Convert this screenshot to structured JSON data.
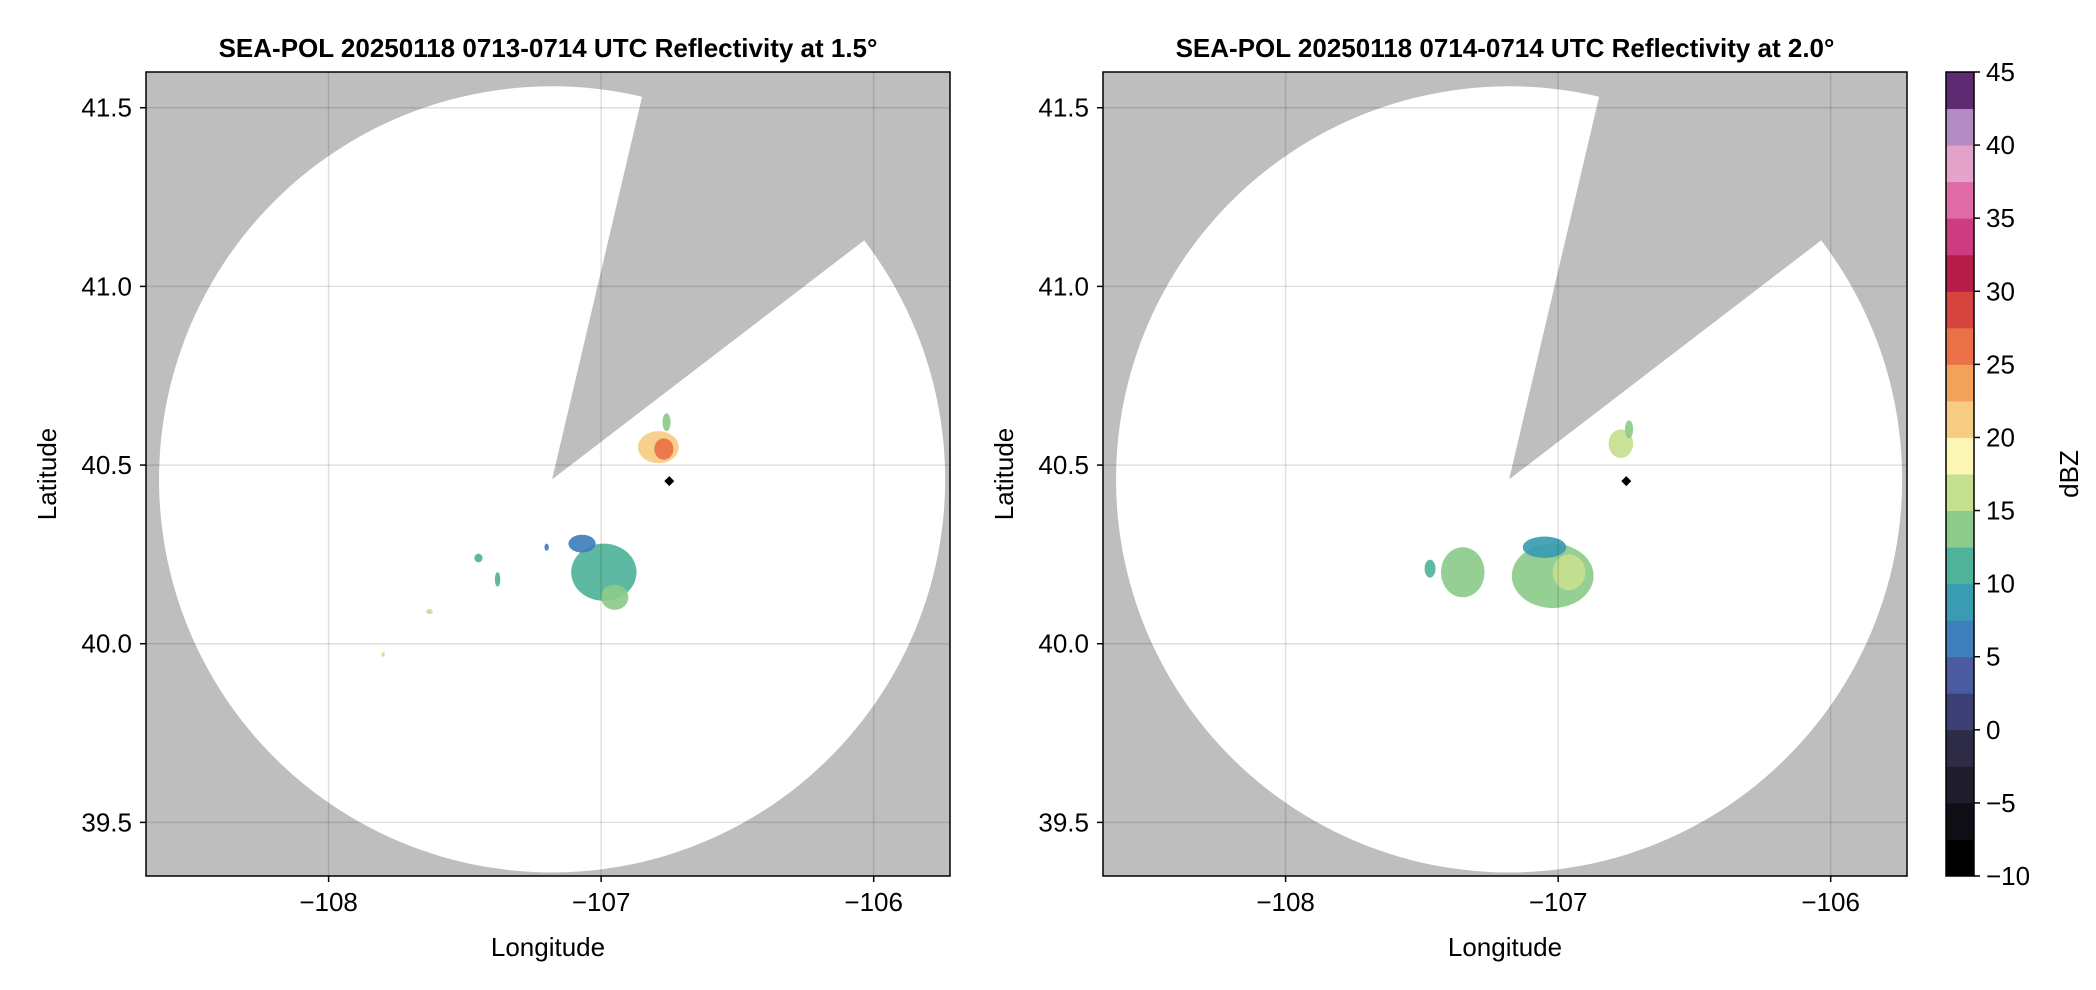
{
  "colorbar": {
    "label": "dBZ",
    "min": -10,
    "max": 45,
    "ticks": [
      -10,
      -5,
      0,
      5,
      10,
      15,
      20,
      25,
      30,
      35,
      40,
      45
    ],
    "tick_labels": [
      "−10",
      "−5",
      "0",
      "5",
      "10",
      "15",
      "20",
      "25",
      "30",
      "35",
      "40",
      "45"
    ],
    "bins": [
      {
        "from": -10,
        "to": -7.5,
        "color": "#000000"
      },
      {
        "from": -7.5,
        "to": -5,
        "color": "#0f0e14"
      },
      {
        "from": -5,
        "to": -2.5,
        "color": "#1f1d2b"
      },
      {
        "from": -2.5,
        "to": 0,
        "color": "#2e2b47"
      },
      {
        "from": 0,
        "to": 2.5,
        "color": "#3b3f73"
      },
      {
        "from": 2.5,
        "to": 5,
        "color": "#4a5ba1"
      },
      {
        "from": 5,
        "to": 7.5,
        "color": "#3f7fbc"
      },
      {
        "from": 7.5,
        "to": 10,
        "color": "#3a9cb1"
      },
      {
        "from": 10,
        "to": 12.5,
        "color": "#4fb39a"
      },
      {
        "from": 12.5,
        "to": 15,
        "color": "#8ccb8a"
      },
      {
        "from": 15,
        "to": 17.5,
        "color": "#c5e08e"
      },
      {
        "from": 17.5,
        "to": 20,
        "color": "#fbf6b4"
      },
      {
        "from": 20,
        "to": 22.5,
        "color": "#f6cc83"
      },
      {
        "from": 22.5,
        "to": 25,
        "color": "#f3a25a"
      },
      {
        "from": 25,
        "to": 27.5,
        "color": "#ea7147"
      },
      {
        "from": 27.5,
        "to": 30,
        "color": "#d6443f"
      },
      {
        "from": 30,
        "to": 32.5,
        "color": "#b71d4a"
      },
      {
        "from": 32.5,
        "to": 35,
        "color": "#cc3c7e"
      },
      {
        "from": 35,
        "to": 37.5,
        "color": "#de6ba5"
      },
      {
        "from": 37.5,
        "to": 40,
        "color": "#e4a4ca"
      },
      {
        "from": 40,
        "to": 42.5,
        "color": "#b38cc4"
      },
      {
        "from": 42.5,
        "to": 45,
        "color": "#5e2a72"
      }
    ]
  },
  "chart_data": [
    {
      "type": "heatmap",
      "title": "SEA-POL 20250118 0713-0714 UTC Reflectivity at 1.5°",
      "xlabel": "Longitude",
      "ylabel": "Latitude",
      "xlim": [
        -108.67,
        -105.72
      ],
      "ylim": [
        39.35,
        41.6
      ],
      "xticks": [
        -108,
        -107,
        -106
      ],
      "xtick_labels": [
        "−108",
        "−107",
        "−106"
      ],
      "yticks": [
        39.5,
        40.0,
        40.5,
        41.0,
        41.5
      ],
      "ytick_labels": [
        "39.5",
        "40.0",
        "40.5",
        "41.0",
        "41.5"
      ],
      "grid": true,
      "background_color": "#bebebe",
      "coverage": {
        "center": [
          -107.18,
          40.46
        ],
        "radius_deg_lat": 1.1,
        "wedge_edge_1": [
          -106.85,
          41.53
        ],
        "wedge_edge_2": [
          -106.05,
          41.12
        ]
      },
      "marker": {
        "lon": -106.75,
        "lat": 40.455,
        "shape": "diamond",
        "color": "#000000"
      },
      "echoes": [
        {
          "lon": -106.99,
          "lat": 40.2,
          "rx": 0.12,
          "ry": 0.08,
          "dbz": 12
        },
        {
          "lon": -107.07,
          "lat": 40.28,
          "rx": 0.05,
          "ry": 0.025,
          "dbz": 6
        },
        {
          "lon": -106.95,
          "lat": 40.13,
          "rx": 0.05,
          "ry": 0.035,
          "dbz": 14
        },
        {
          "lon": -106.79,
          "lat": 40.55,
          "rx": 0.075,
          "ry": 0.045,
          "dbz": 20
        },
        {
          "lon": -106.77,
          "lat": 40.545,
          "rx": 0.035,
          "ry": 0.03,
          "dbz": 25
        },
        {
          "lon": -106.76,
          "lat": 40.62,
          "rx": 0.015,
          "ry": 0.025,
          "dbz": 14
        },
        {
          "lon": -107.45,
          "lat": 40.24,
          "rx": 0.015,
          "ry": 0.012,
          "dbz": 12
        },
        {
          "lon": -107.38,
          "lat": 40.18,
          "rx": 0.01,
          "ry": 0.02,
          "dbz": 11
        },
        {
          "lon": -107.2,
          "lat": 40.27,
          "rx": 0.008,
          "ry": 0.01,
          "dbz": 6
        },
        {
          "lon": -107.63,
          "lat": 40.09,
          "rx": 0.012,
          "ry": 0.007,
          "dbz": 16
        },
        {
          "lon": -107.8,
          "lat": 39.97,
          "rx": 0.006,
          "ry": 0.006,
          "dbz": 22
        }
      ]
    },
    {
      "type": "heatmap",
      "title": "SEA-POL 20250118 0714-0714 UTC Reflectivity at 2.0°",
      "xlabel": "Longitude",
      "ylabel": "Latitude",
      "xlim": [
        -108.67,
        -105.72
      ],
      "ylim": [
        39.35,
        41.6
      ],
      "xticks": [
        -108,
        -107,
        -106
      ],
      "xtick_labels": [
        "−108",
        "−107",
        "−106"
      ],
      "yticks": [
        39.5,
        40.0,
        40.5,
        41.0,
        41.5
      ],
      "ytick_labels": [
        "39.5",
        "40.0",
        "40.5",
        "41.0",
        "41.5"
      ],
      "grid": true,
      "background_color": "#bebebe",
      "coverage": {
        "center": [
          -107.18,
          40.46
        ],
        "radius_deg_lat": 1.1,
        "wedge_edge_1": [
          -106.85,
          41.53
        ],
        "wedge_edge_2": [
          -106.05,
          41.12
        ]
      },
      "marker": {
        "lon": -106.75,
        "lat": 40.455,
        "shape": "diamond",
        "color": "#000000"
      },
      "echoes": [
        {
          "lon": -107.35,
          "lat": 40.2,
          "rx": 0.08,
          "ry": 0.07,
          "dbz": 14
        },
        {
          "lon": -107.02,
          "lat": 40.19,
          "rx": 0.15,
          "ry": 0.09,
          "dbz": 13
        },
        {
          "lon": -106.96,
          "lat": 40.2,
          "rx": 0.06,
          "ry": 0.05,
          "dbz": 16
        },
        {
          "lon": -107.05,
          "lat": 40.27,
          "rx": 0.08,
          "ry": 0.03,
          "dbz": 9
        },
        {
          "lon": -106.77,
          "lat": 40.56,
          "rx": 0.045,
          "ry": 0.04,
          "dbz": 16
        },
        {
          "lon": -106.74,
          "lat": 40.6,
          "rx": 0.015,
          "ry": 0.025,
          "dbz": 14
        },
        {
          "lon": -107.47,
          "lat": 40.21,
          "rx": 0.02,
          "ry": 0.025,
          "dbz": 10
        }
      ]
    }
  ]
}
